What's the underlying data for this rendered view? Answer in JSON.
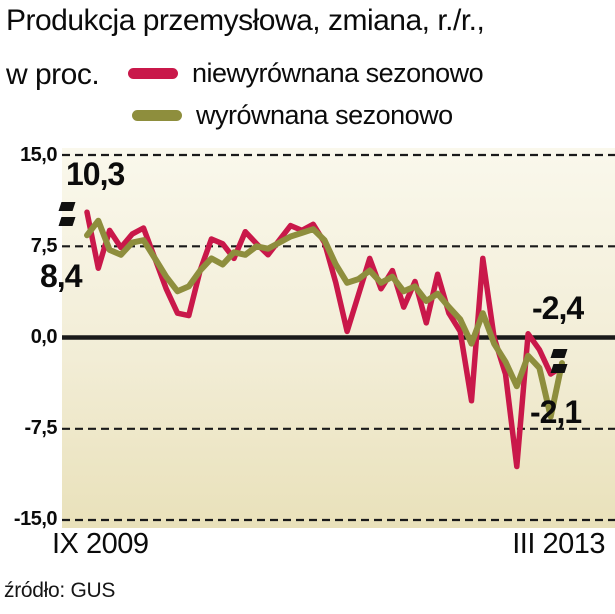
{
  "title": {
    "line1": "Produkcja przemysłowa, zmiana, r./r.,",
    "line2": "w proc."
  },
  "legend": [
    {
      "label": "niewyrównana sezonowo",
      "color": "#c9184a"
    },
    {
      "label": "wyrównana sezonowo",
      "color": "#8e8e3d"
    }
  ],
  "axis": {
    "y_ticks": [
      "15,0",
      "7,5",
      "0,0",
      "-7,5",
      "-15,0"
    ],
    "x_start": "IX 2009",
    "x_end": "III 2013"
  },
  "annotations": {
    "start_red": "10,3",
    "start_olive": "8,4",
    "end_red": "-2,4",
    "end_olive": "-2,1"
  },
  "source": "źródło: GUS",
  "colors": {
    "red": "#c9184a",
    "olive": "#8e8e3d",
    "grid": "#1a1a1a",
    "plot_bg_top": "#faf8ec",
    "plot_bg_bottom": "#e9e1ba"
  },
  "chart_data": {
    "type": "line",
    "title": "Produkcja przemysłowa, zmiana, r./r., w proc.",
    "x_range": [
      "IX 2009",
      "III 2013"
    ],
    "ylim": [
      -15,
      15
    ],
    "y_gridlines": [
      15,
      7.5,
      0,
      -7.5,
      -15
    ],
    "grid": "dashed horizontal, solid zero line",
    "legend_position": "top",
    "source": "GUS",
    "series": [
      {
        "name": "niewyrównana sezonowo",
        "color": "#c9184a",
        "first_value": 10.3,
        "last_value": -2.4,
        "values": [
          10.3,
          5.7,
          8.8,
          7.4,
          8.5,
          9.0,
          6.5,
          4.0,
          2.0,
          1.8,
          5.5,
          8.1,
          7.7,
          6.5,
          8.7,
          7.7,
          6.8,
          8.0,
          9.2,
          8.8,
          9.3,
          7.8,
          4.5,
          0.5,
          3.5,
          6.5,
          4.0,
          5.5,
          2.5,
          4.6,
          1.2,
          5.2,
          2.0,
          0.5,
          -5.2,
          6.5,
          0.0,
          -3.0,
          -10.6,
          0.3,
          -1.0,
          -3.0,
          -2.4
        ]
      },
      {
        "name": "wyrównana sezonowo",
        "color": "#8e8e3d",
        "first_value": 8.4,
        "last_value": -2.1,
        "values": [
          8.4,
          9.6,
          7.2,
          6.8,
          7.8,
          8.0,
          6.5,
          5.0,
          3.8,
          4.2,
          5.5,
          6.5,
          6.0,
          7.0,
          6.8,
          7.5,
          7.3,
          7.8,
          8.3,
          8.6,
          8.9,
          8.0,
          6.0,
          4.5,
          4.8,
          5.5,
          4.5,
          5.0,
          3.8,
          4.2,
          3.0,
          3.6,
          2.5,
          1.5,
          -0.5,
          2.0,
          -0.5,
          -2.0,
          -4.0,
          -1.5,
          -2.5,
          -6.5,
          -2.1
        ]
      }
    ]
  }
}
